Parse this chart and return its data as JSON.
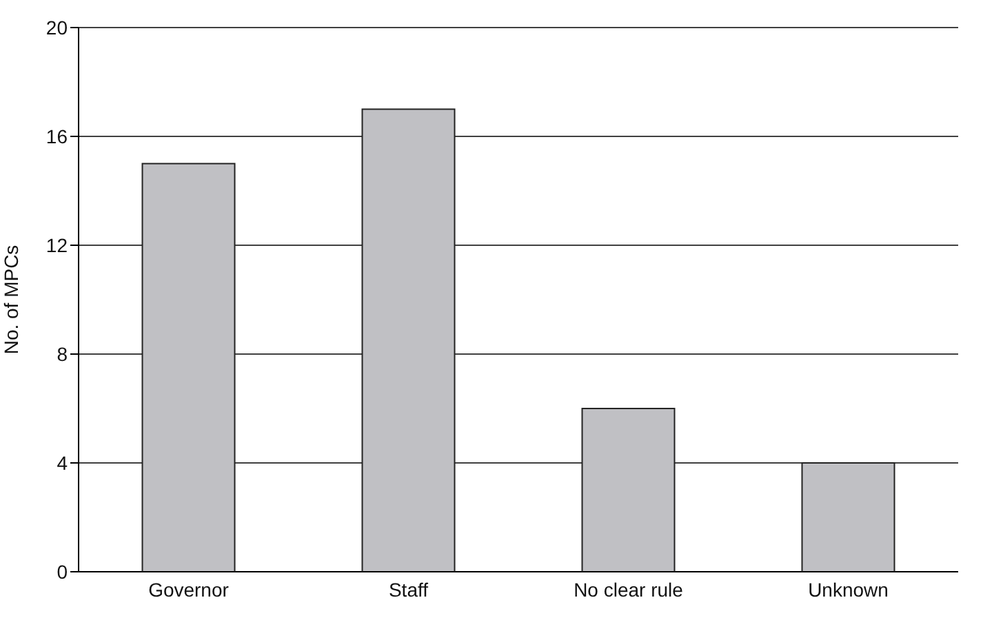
{
  "chart_data": {
    "type": "bar",
    "ylabel": "No. of MPCs",
    "categories": [
      "Governor",
      "Staff",
      "No clear rule",
      "Unknown"
    ],
    "values": [
      15,
      17,
      6,
      4
    ],
    "color": "#c0c0c4",
    "ylim": [
      0,
      20
    ],
    "yticks": [
      0,
      4,
      8,
      12,
      16,
      20
    ],
    "grid": "y"
  }
}
